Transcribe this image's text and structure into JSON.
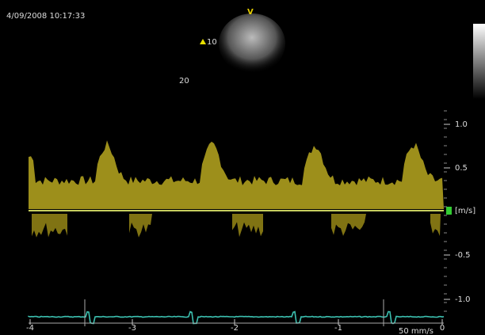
{
  "header": {
    "timestamp": "4/09/2008 10:17:33",
    "marker": "V"
  },
  "depth_labels": [
    "10",
    "20"
  ],
  "velocity_scale": {
    "unit": "[m/s]",
    "ticks": [
      "1.0",
      "0.5",
      "-0.5",
      "-1.0"
    ]
  },
  "time_scale": {
    "ticks": [
      "-4",
      "-3",
      "-2",
      "-1",
      "0"
    ],
    "sweep": "50 mm/s"
  }
}
